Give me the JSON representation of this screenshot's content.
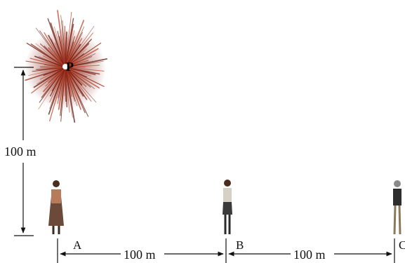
{
  "diagram": {
    "point_label": "P",
    "vertical_distance": "100 m",
    "observers": [
      {
        "label": "A"
      },
      {
        "label": "B"
      },
      {
        "label": "C"
      }
    ],
    "horizontal_distances": [
      "100 m",
      "100 m"
    ],
    "colors": {
      "firework_outer": "#8b2a1a",
      "firework_inner": "#c0432a",
      "firework_core": "#5e120b",
      "line": "#111111"
    }
  }
}
